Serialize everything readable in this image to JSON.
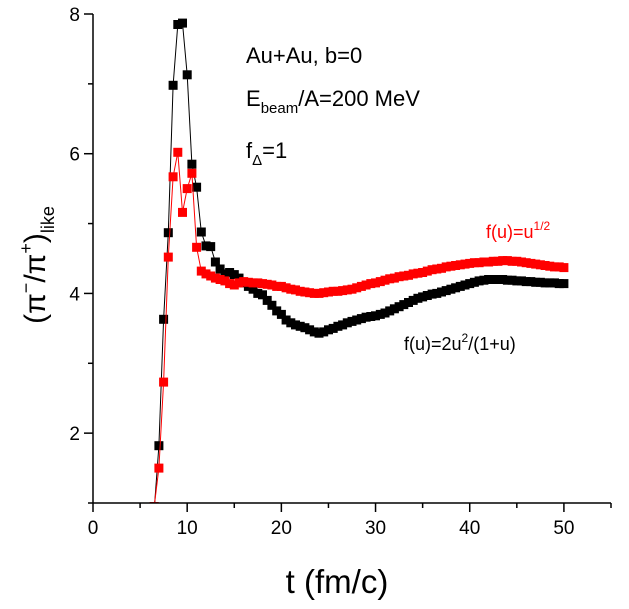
{
  "chart_data": {
    "type": "scatter",
    "title": "",
    "xlabel": "t (fm/c)",
    "ylabel_parts": {
      "base": "(π",
      "sup1": "−",
      "mid": "/π",
      "sup2": "+",
      "close": ")",
      "sub": "like"
    },
    "xlim": [
      0,
      55
    ],
    "ylim": [
      1,
      8
    ],
    "xticks": [
      0,
      10,
      20,
      30,
      40,
      50
    ],
    "yticks": [
      2,
      4,
      6,
      8
    ],
    "grid": false,
    "annotations": {
      "line1": "Au+Au, b=0",
      "line2_main": "E",
      "line2_sub": "beam",
      "line2_rest": "/A=200 MeV",
      "line3_main": "f",
      "line3_sub": "Δ",
      "line3_rest": "=1"
    },
    "series": [
      {
        "name": "f(u)=2u²/(1+u)",
        "label_parts": {
          "a": "f(u)=2u",
          "sup": "2",
          "b": "/(1+u)"
        },
        "color": "#000000",
        "points": [
          [
            6.5,
            0.9
          ],
          [
            7.0,
            1.82
          ],
          [
            7.5,
            3.63
          ],
          [
            8.0,
            4.87
          ],
          [
            8.5,
            6.98
          ],
          [
            9.0,
            7.85
          ],
          [
            9.5,
            7.87
          ],
          [
            10.0,
            7.13
          ],
          [
            10.5,
            5.85
          ],
          [
            11.0,
            5.52
          ],
          [
            11.5,
            4.88
          ],
          [
            12.0,
            4.68
          ],
          [
            12.5,
            4.67
          ],
          [
            13.0,
            4.45
          ],
          [
            13.5,
            4.35
          ],
          [
            14.0,
            4.28
          ],
          [
            14.5,
            4.3
          ],
          [
            15.0,
            4.27
          ],
          [
            15.5,
            4.22
          ],
          [
            16.0,
            4.15
          ],
          [
            16.5,
            4.1
          ],
          [
            17.0,
            4.06
          ],
          [
            17.5,
            4.0
          ],
          [
            18.0,
            3.98
          ],
          [
            18.5,
            3.9
          ],
          [
            19.0,
            3.83
          ],
          [
            19.5,
            3.75
          ],
          [
            20.0,
            3.7
          ],
          [
            20.5,
            3.62
          ],
          [
            21.0,
            3.58
          ],
          [
            21.5,
            3.55
          ],
          [
            22.0,
            3.53
          ],
          [
            22.5,
            3.51
          ],
          [
            23.0,
            3.48
          ],
          [
            23.5,
            3.45
          ],
          [
            24.0,
            3.43
          ],
          [
            24.5,
            3.45
          ],
          [
            25.0,
            3.48
          ],
          [
            25.5,
            3.5
          ],
          [
            26.0,
            3.53
          ],
          [
            26.5,
            3.55
          ],
          [
            27.0,
            3.58
          ],
          [
            27.5,
            3.6
          ],
          [
            28.0,
            3.62
          ],
          [
            28.5,
            3.64
          ],
          [
            29.0,
            3.66
          ],
          [
            29.5,
            3.67
          ],
          [
            30.0,
            3.68
          ],
          [
            30.5,
            3.7
          ],
          [
            31.0,
            3.72
          ],
          [
            31.5,
            3.75
          ],
          [
            32.0,
            3.78
          ],
          [
            32.5,
            3.81
          ],
          [
            33.0,
            3.84
          ],
          [
            33.5,
            3.87
          ],
          [
            34.0,
            3.9
          ],
          [
            34.5,
            3.93
          ],
          [
            35.0,
            3.95
          ],
          [
            35.5,
            3.97
          ],
          [
            36.0,
            3.99
          ],
          [
            36.5,
            4.0
          ],
          [
            37.0,
            4.02
          ],
          [
            37.5,
            4.04
          ],
          [
            38.0,
            4.06
          ],
          [
            38.5,
            4.08
          ],
          [
            39.0,
            4.1
          ],
          [
            39.5,
            4.12
          ],
          [
            40.0,
            4.14
          ],
          [
            40.5,
            4.16
          ],
          [
            41.0,
            4.18
          ],
          [
            41.5,
            4.19
          ],
          [
            42.0,
            4.2
          ],
          [
            42.5,
            4.2
          ],
          [
            43.0,
            4.2
          ],
          [
            43.5,
            4.2
          ],
          [
            44.0,
            4.19
          ],
          [
            44.5,
            4.19
          ],
          [
            45.0,
            4.18
          ],
          [
            45.5,
            4.18
          ],
          [
            46.0,
            4.17
          ],
          [
            46.5,
            4.17
          ],
          [
            47.0,
            4.16
          ],
          [
            47.5,
            4.16
          ],
          [
            48.0,
            4.15
          ],
          [
            48.5,
            4.15
          ],
          [
            49.0,
            4.15
          ],
          [
            49.5,
            4.14
          ],
          [
            50.0,
            4.14
          ]
        ]
      },
      {
        "name": "f(u)=u^1/2",
        "label_parts": {
          "a": "f(u)=u",
          "sup": "1/2",
          "b": ""
        },
        "color": "#ff0000",
        "points": [
          [
            6.5,
            0.95
          ],
          [
            7.0,
            1.5
          ],
          [
            7.5,
            2.73
          ],
          [
            8.0,
            4.52
          ],
          [
            8.5,
            5.67
          ],
          [
            9.0,
            6.02
          ],
          [
            9.5,
            5.16
          ],
          [
            10.0,
            5.5
          ],
          [
            10.5,
            5.72
          ],
          [
            11.0,
            4.66
          ],
          [
            11.5,
            4.32
          ],
          [
            12.0,
            4.28
          ],
          [
            12.5,
            4.25
          ],
          [
            13.0,
            4.22
          ],
          [
            13.5,
            4.2
          ],
          [
            14.0,
            4.18
          ],
          [
            14.5,
            4.14
          ],
          [
            15.0,
            4.12
          ],
          [
            15.5,
            4.15
          ],
          [
            16.0,
            4.17
          ],
          [
            16.5,
            4.16
          ],
          [
            17.0,
            4.15
          ],
          [
            17.5,
            4.15
          ],
          [
            18.0,
            4.14
          ],
          [
            18.5,
            4.13
          ],
          [
            19.0,
            4.12
          ],
          [
            19.5,
            4.1
          ],
          [
            20.0,
            4.1
          ],
          [
            20.5,
            4.08
          ],
          [
            21.0,
            4.06
          ],
          [
            21.5,
            4.05
          ],
          [
            22.0,
            4.03
          ],
          [
            22.5,
            4.02
          ],
          [
            23.0,
            4.01
          ],
          [
            23.5,
            4.0
          ],
          [
            24.0,
            4.0
          ],
          [
            24.5,
            4.01
          ],
          [
            25.0,
            4.02
          ],
          [
            25.5,
            4.03
          ],
          [
            26.0,
            4.03
          ],
          [
            26.5,
            4.04
          ],
          [
            27.0,
            4.05
          ],
          [
            27.5,
            4.06
          ],
          [
            28.0,
            4.08
          ],
          [
            28.5,
            4.1
          ],
          [
            29.0,
            4.12
          ],
          [
            29.5,
            4.14
          ],
          [
            30.0,
            4.15
          ],
          [
            30.5,
            4.17
          ],
          [
            31.0,
            4.19
          ],
          [
            31.5,
            4.21
          ],
          [
            32.0,
            4.22
          ],
          [
            32.5,
            4.24
          ],
          [
            33.0,
            4.25
          ],
          [
            33.5,
            4.26
          ],
          [
            34.0,
            4.28
          ],
          [
            34.5,
            4.29
          ],
          [
            35.0,
            4.3
          ],
          [
            35.5,
            4.32
          ],
          [
            36.0,
            4.34
          ],
          [
            36.5,
            4.35
          ],
          [
            37.0,
            4.36
          ],
          [
            37.5,
            4.38
          ],
          [
            38.0,
            4.39
          ],
          [
            38.5,
            4.4
          ],
          [
            39.0,
            4.41
          ],
          [
            39.5,
            4.42
          ],
          [
            40.0,
            4.43
          ],
          [
            40.5,
            4.44
          ],
          [
            41.0,
            4.44
          ],
          [
            41.5,
            4.45
          ],
          [
            42.0,
            4.45
          ],
          [
            42.5,
            4.46
          ],
          [
            43.0,
            4.46
          ],
          [
            43.5,
            4.47
          ],
          [
            44.0,
            4.47
          ],
          [
            44.5,
            4.46
          ],
          [
            45.0,
            4.46
          ],
          [
            45.5,
            4.45
          ],
          [
            46.0,
            4.44
          ],
          [
            46.5,
            4.43
          ],
          [
            47.0,
            4.42
          ],
          [
            47.5,
            4.41
          ],
          [
            48.0,
            4.4
          ],
          [
            48.5,
            4.39
          ],
          [
            49.0,
            4.38
          ],
          [
            49.5,
            4.38
          ],
          [
            50.0,
            4.37
          ]
        ]
      }
    ]
  }
}
